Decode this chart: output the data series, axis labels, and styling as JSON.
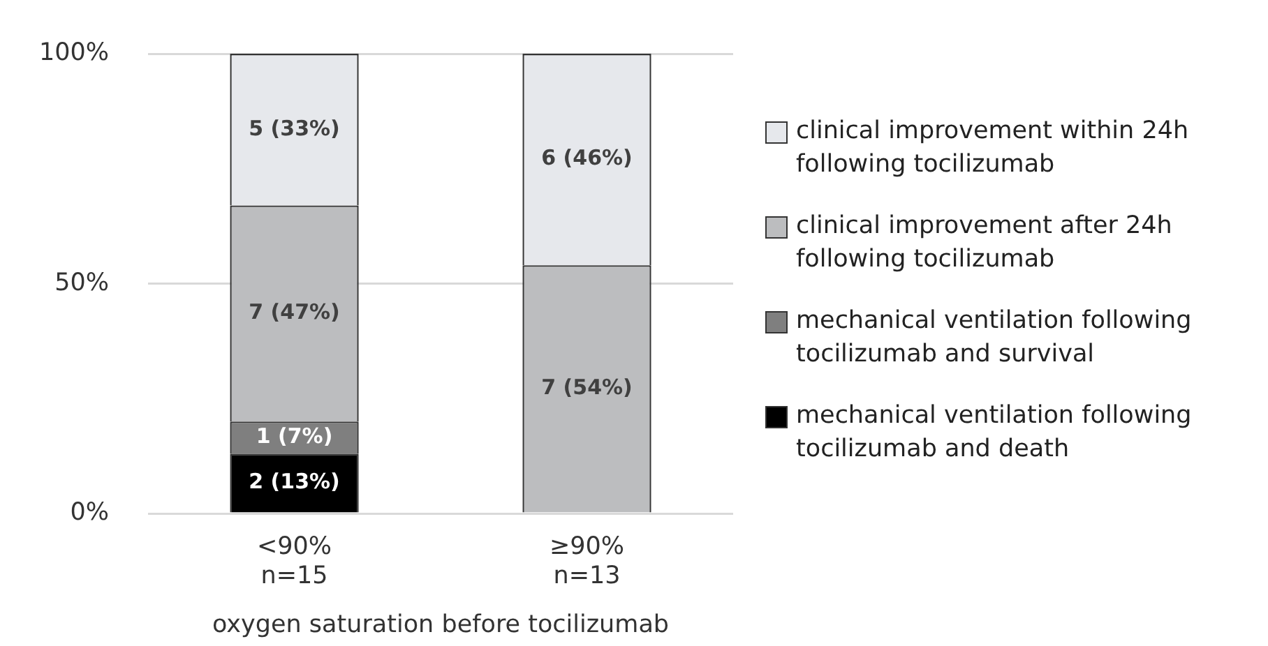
{
  "chart_data": {
    "type": "bar",
    "stacked": true,
    "categories": [
      "<90%\nn=15",
      "≥90%\nn=13"
    ],
    "xlabel": "oxygen saturation before tocilizumab",
    "series": [
      {
        "name": "mechanical ventilation following tocilizumab and death",
        "color": "#000000",
        "values": [
          13,
          0
        ],
        "value_labels": [
          "2 (13%)",
          null
        ]
      },
      {
        "name": "mechanical ventilation following tocilizumab and survival",
        "color": "#7f7f7f",
        "values": [
          7,
          0
        ],
        "value_labels": [
          "1 (7%)",
          null
        ]
      },
      {
        "name": "clinical improvement after 24h following tocilizumab",
        "color": "#bcbdbf",
        "values": [
          47,
          54
        ],
        "value_labels": [
          "7 (47%)",
          "7 (54%)"
        ]
      },
      {
        "name": "clinical improvement within 24h following tocilizumab",
        "color": "#e6e8ec",
        "values": [
          33,
          46
        ],
        "value_labels": [
          "5 (33%)",
          "6 (46%)"
        ]
      }
    ],
    "ylim": [
      0,
      100
    ],
    "yticks": [
      {
        "value": 0,
        "label": "0%"
      },
      {
        "value": 50,
        "label": "50%"
      },
      {
        "value": 100,
        "label": "100%"
      }
    ],
    "grid": "y",
    "legend": "right"
  }
}
